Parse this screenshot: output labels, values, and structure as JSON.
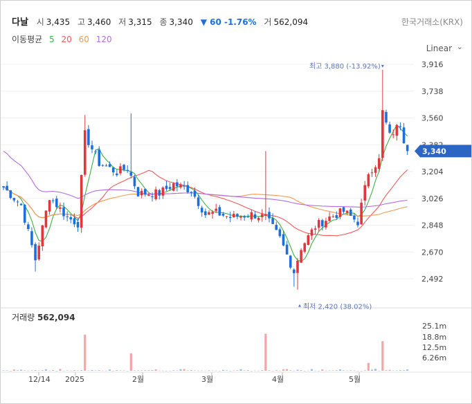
{
  "header": {
    "name": "다날",
    "open_label": "시",
    "open": "3,435",
    "high_label": "고",
    "high": "3,460",
    "low_label": "저",
    "low": "3,315",
    "close_label": "종",
    "close": "3,340",
    "change": "▼ 60 -1.76%",
    "volume_label": "거",
    "volume": "562,094",
    "exchange": "한국거래소(KRX)"
  },
  "ma": {
    "label": "이동평균",
    "p5": "5",
    "p20": "20",
    "p60": "60",
    "p120": "120",
    "colors": {
      "p5": "#3cb043",
      "p20": "#f0595b",
      "p60": "#f49a4d",
      "p120": "#b36ce0"
    }
  },
  "scale_mode": "Linear",
  "colors": {
    "up": "#e0363c",
    "down": "#1e6fd9",
    "current_badge": "#2c66c4",
    "annotation": "#5a77b8"
  },
  "chart_data": {
    "type": "candlestick",
    "y_ticks": [
      "3,916",
      "3,738",
      "3,560",
      "3,382",
      "3,204",
      "3,026",
      "2,848",
      "2,670",
      "2,492"
    ],
    "x_ticks": [
      "12/14",
      "2025",
      "2월",
      "3월",
      "4월",
      "5월"
    ],
    "current_price": "3,340",
    "high_annotation": "최고 3,880 (-13.92%)",
    "low_annotation": "최저 2,420 (38.02%)",
    "volume_title": "거래량",
    "volume_value": "562,094",
    "volume_ticks": [
      "25.1m",
      "18.8m",
      "12.5m",
      "6.26m"
    ],
    "anchors": [
      [
        0,
        3100
      ],
      [
        5,
        2980
      ],
      [
        9,
        2620
      ],
      [
        13,
        3040
      ],
      [
        18,
        2900
      ],
      [
        21,
        2860
      ],
      [
        23,
        3450
      ],
      [
        27,
        3260
      ],
      [
        32,
        3200
      ],
      [
        35,
        3230
      ],
      [
        38,
        3060
      ],
      [
        44,
        3060
      ],
      [
        48,
        3120
      ],
      [
        53,
        3080
      ],
      [
        57,
        2920
      ],
      [
        60,
        2930
      ],
      [
        64,
        2900
      ],
      [
        70,
        2920
      ],
      [
        74,
        2900
      ],
      [
        78,
        2760
      ],
      [
        82,
        2540
      ],
      [
        84,
        2700
      ],
      [
        88,
        2840
      ],
      [
        92,
        2900
      ],
      [
        96,
        2940
      ],
      [
        100,
        2870
      ],
      [
        103,
        3200
      ],
      [
        106,
        3280
      ],
      [
        107,
        3600
      ],
      [
        109,
        3440
      ],
      [
        112,
        3520
      ],
      [
        113,
        3420
      ],
      [
        114,
        3340
      ]
    ]
  }
}
